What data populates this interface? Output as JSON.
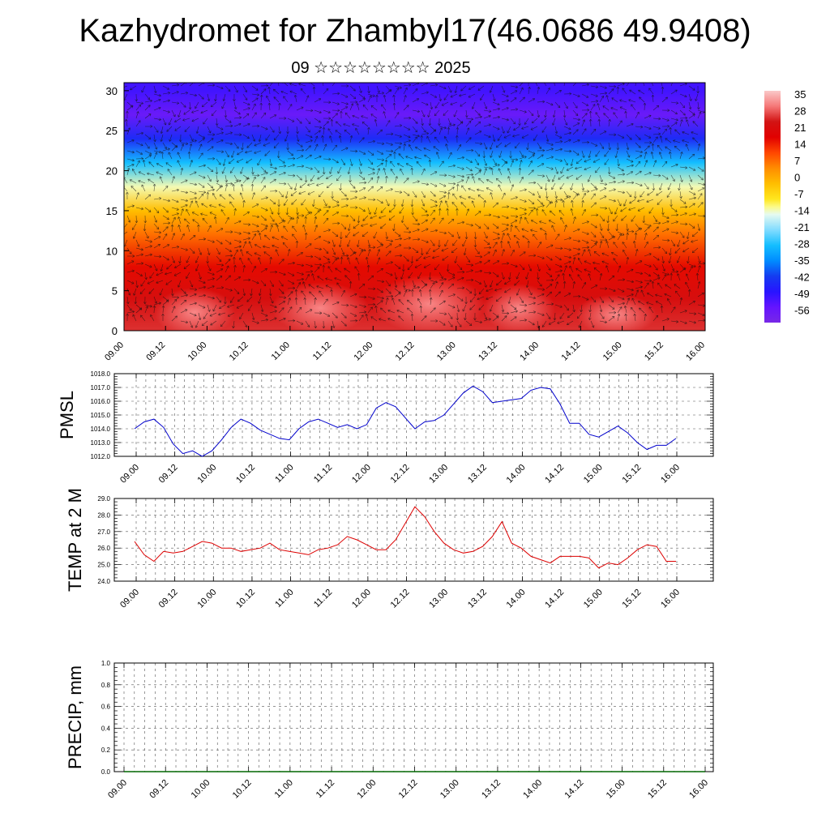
{
  "title": "Kazhydromet for Zhambyl17(46.0686 49.9408)",
  "subtitle": "09 ☆☆☆☆☆☆☆☆ 2025",
  "chart_data": [
    {
      "type": "heatmap",
      "ylim": [
        0,
        31
      ],
      "yticks": [
        "0",
        "5",
        "10",
        "15",
        "20",
        "25",
        "30"
      ],
      "xtick_labels": [
        "09.00",
        "09.12",
        "10.00",
        "10.12",
        "11.00",
        "11.12",
        "12.00",
        "12.12",
        "13.00",
        "13.12",
        "14.00",
        "14.12",
        "15.00",
        "15.12",
        "16.00"
      ],
      "colorbar": {
        "labels": [
          "35",
          "28",
          "21",
          "14",
          "7",
          "0",
          "-7",
          "-14",
          "-21",
          "-28",
          "-35",
          "-42",
          "-49",
          "-56"
        ],
        "range": [
          -63,
          42
        ]
      },
      "levels": [
        0,
        4,
        8,
        12,
        15,
        18,
        21,
        24,
        27,
        30
      ],
      "level_values": [
        30,
        26,
        20,
        10,
        0,
        -12,
        -28,
        -45,
        -58,
        -52
      ],
      "overlay": "wind vectors"
    },
    {
      "type": "line",
      "ylabel": "PMSL",
      "ylim": [
        1012.0,
        1018.0
      ],
      "yticks": [
        "1012.0",
        "1013.0",
        "1014.0",
        "1015.0",
        "1016.0",
        "1017.0",
        "1018.0"
      ],
      "xtick_labels": [
        "09.00",
        "09.12",
        "10.00",
        "10.12",
        "11.00",
        "11.12",
        "12.00",
        "12.12",
        "13.00",
        "13.12",
        "14.00",
        "14.12",
        "15.00",
        "15.12",
        "16.00"
      ],
      "color": "#0000cc",
      "series": [
        {
          "values": [
            1014.0,
            1014.5,
            1014.7,
            1014.1,
            1012.9,
            1012.2,
            1012.4,
            1012.0,
            1012.4,
            1013.2,
            1014.1,
            1014.7,
            1014.4,
            1013.9,
            1013.6,
            1013.3,
            1013.2,
            1014.0,
            1014.5,
            1014.7,
            1014.4,
            1014.1,
            1014.3,
            1014.0,
            1014.3,
            1015.5,
            1015.9,
            1015.6,
            1014.8,
            1014.0,
            1014.5,
            1014.6,
            1015.0,
            1015.8,
            1016.6,
            1017.1,
            1016.7,
            1015.9,
            1016.0,
            1016.1,
            1016.2,
            1016.8,
            1017.0,
            1016.9,
            1015.8,
            1014.4,
            1014.4,
            1013.6,
            1013.4,
            1013.8,
            1014.2,
            1013.7,
            1013.0,
            1012.5,
            1012.8,
            1012.8,
            1013.3
          ]
        }
      ]
    },
    {
      "type": "line",
      "ylabel": "TEMP at 2 M",
      "ylim": [
        24.0,
        29.0
      ],
      "yticks": [
        "24.0",
        "25.0",
        "26.0",
        "27.0",
        "28.0",
        "29.0"
      ],
      "xtick_labels": [
        "09.00",
        "09.12",
        "10.00",
        "10.12",
        "11.00",
        "11.12",
        "12.00",
        "12.12",
        "13.00",
        "13.12",
        "14.00",
        "14.12",
        "15.00",
        "15.12",
        "16.00"
      ],
      "color": "#dd0000",
      "series": [
        {
          "values": [
            26.4,
            25.6,
            25.2,
            25.8,
            25.7,
            25.8,
            26.1,
            26.4,
            26.3,
            26.0,
            26.0,
            25.8,
            25.9,
            26.0,
            26.3,
            25.9,
            25.8,
            25.7,
            25.6,
            25.9,
            26.0,
            26.2,
            26.7,
            26.5,
            26.2,
            25.9,
            25.9,
            26.5,
            27.5,
            28.5,
            27.9,
            27.0,
            26.3,
            25.9,
            25.7,
            25.8,
            26.1,
            26.7,
            27.6,
            26.3,
            26.0,
            25.5,
            25.3,
            25.1,
            25.5,
            25.5,
            25.5,
            25.4,
            24.8,
            25.1,
            25.0,
            25.4,
            25.9,
            26.2,
            26.1,
            25.2,
            25.2
          ]
        }
      ]
    },
    {
      "type": "line",
      "ylabel": "PRECIP, mm",
      "ylim": [
        0.0,
        1.0
      ],
      "yticks": [
        "0.0",
        "0.2",
        "0.4",
        "0.6",
        "0.8",
        "1.0"
      ],
      "xtick_labels": [
        "09.00",
        "09.12",
        "10.00",
        "10.12",
        "11.00",
        "11.12",
        "12.00",
        "12.12",
        "13.00",
        "13.12",
        "14.00",
        "14.12",
        "15.00",
        "15.12",
        "16.00"
      ],
      "color": "#006600",
      "series": [
        {
          "values": [
            0,
            0,
            0,
            0,
            0,
            0,
            0,
            0,
            0,
            0,
            0,
            0,
            0,
            0,
            0,
            0,
            0,
            0,
            0,
            0,
            0,
            0,
            0,
            0,
            0,
            0,
            0,
            0,
            0,
            0,
            0,
            0,
            0,
            0,
            0,
            0,
            0,
            0,
            0,
            0,
            0,
            0,
            0,
            0,
            0,
            0,
            0,
            0,
            0,
            0,
            0,
            0,
            0,
            0,
            0,
            0,
            0
          ]
        }
      ]
    }
  ]
}
